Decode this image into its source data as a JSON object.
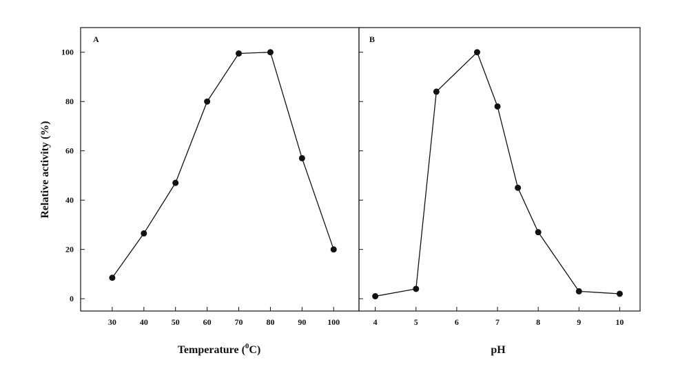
{
  "chart_data": [
    {
      "type": "line",
      "panel_label": "A",
      "xlabel_main": "Temperature (",
      "xlabel_sup": "0",
      "xlabel_end": "C)",
      "ylabel": "Relative activity (%)",
      "xlim": [
        20,
        108
      ],
      "ylim": [
        -5,
        110
      ],
      "x_ticks": [
        30,
        40,
        50,
        60,
        70,
        80,
        90,
        100
      ],
      "y_ticks": [
        0,
        20,
        40,
        60,
        80,
        100
      ],
      "series": [
        {
          "x": [
            30,
            40,
            50,
            60,
            70,
            80,
            90,
            100
          ],
          "values": [
            8.5,
            26.5,
            47,
            80,
            99.5,
            100,
            57,
            20
          ]
        }
      ]
    },
    {
      "type": "line",
      "panel_label": "B",
      "xlabel": "pH",
      "xlim": [
        3.6,
        10.5
      ],
      "ylim": [
        -5,
        110
      ],
      "x_ticks": [
        4,
        5,
        6,
        7,
        8,
        9,
        10
      ],
      "y_ticks": [
        0,
        20,
        40,
        60,
        80,
        100
      ],
      "series": [
        {
          "x": [
            4,
            5,
            5.5,
            6.5,
            7,
            7.5,
            8,
            9,
            10
          ],
          "values": [
            1,
            4,
            84,
            100,
            78,
            45,
            27,
            3,
            2
          ]
        }
      ]
    }
  ]
}
